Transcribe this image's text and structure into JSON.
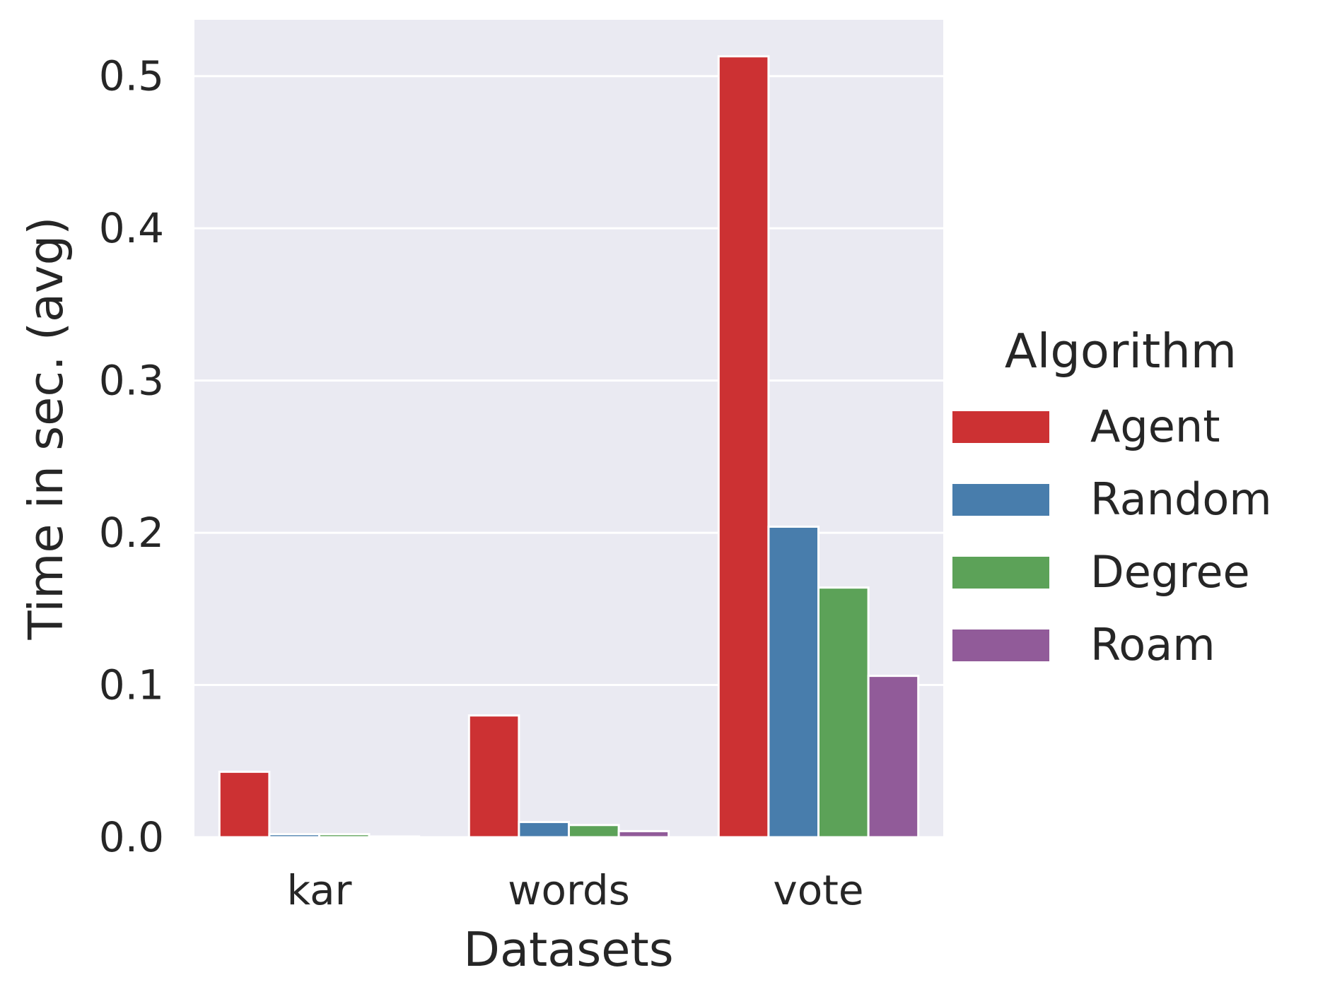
{
  "chart_data": {
    "type": "bar",
    "xlabel": "Datasets",
    "ylabel": "Time in sec. (avg)",
    "categories": [
      "kar",
      "words",
      "vote"
    ],
    "series": [
      {
        "name": "Agent",
        "color": "#cc3133",
        "values": [
          0.043,
          0.08,
          0.513
        ]
      },
      {
        "name": "Random",
        "color": "#487dac",
        "values": [
          0.002,
          0.01,
          0.204
        ]
      },
      {
        "name": "Degree",
        "color": "#5ca258",
        "values": [
          0.002,
          0.008,
          0.164
        ]
      },
      {
        "name": "Roam",
        "color": "#915b99",
        "values": [
          0.0005,
          0.004,
          0.106
        ]
      }
    ],
    "yticks": [
      "0.0",
      "0.1",
      "0.2",
      "0.3",
      "0.4",
      "0.5"
    ],
    "ylim": [
      0,
      0.537
    ],
    "grid": true,
    "legend": {
      "title": "Algorithm",
      "placement": "outside-right"
    },
    "plot_background": "#eaeaf2"
  }
}
